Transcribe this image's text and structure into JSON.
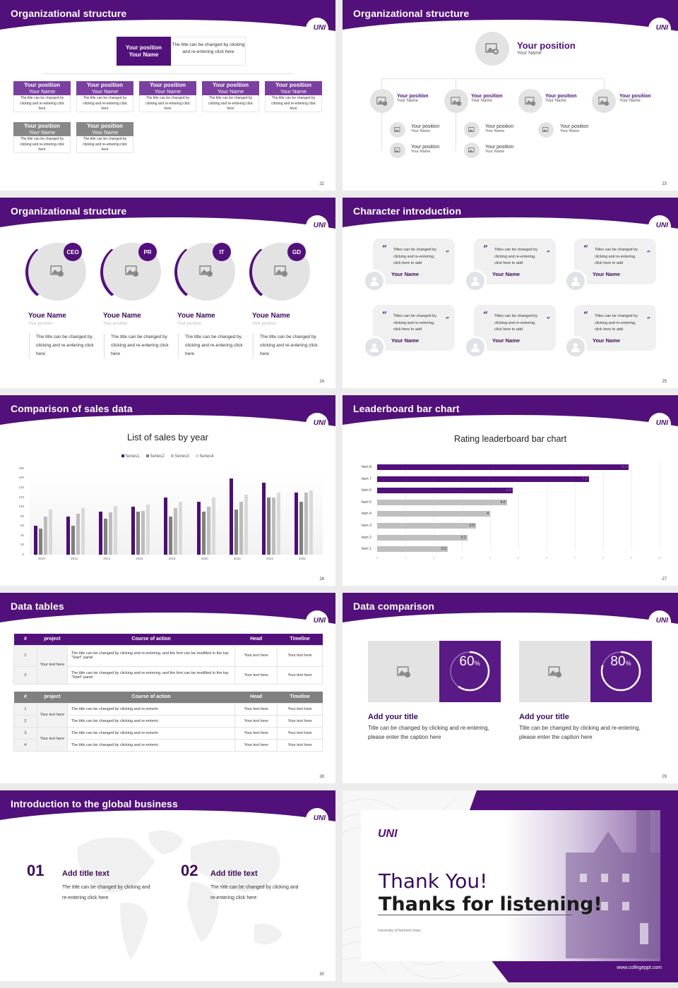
{
  "brand": {
    "logo": "UNI",
    "accent": "#52107a",
    "gray_header": "#808080"
  },
  "slides": {
    "s22": {
      "title": "Organizational structure",
      "page": "22",
      "top": {
        "position": "Your position",
        "name": "Your Name",
        "desc": "The title can be changed by clicking and re-entering click here"
      },
      "row1": [
        {
          "position": "Your position",
          "name": "Your Name",
          "desc": "The title can be changed by clicking and re-entering click here"
        },
        {
          "position": "Your position",
          "name": "Your Name",
          "desc": "The title can be changed by clicking and re-entering click here"
        },
        {
          "position": "Your position",
          "name": "Your Name",
          "desc": "The title can be changed by clicking and re-entering click here"
        },
        {
          "position": "Your position",
          "name": "Your Name",
          "desc": "The title can be changed by clicking and re-entering click here"
        },
        {
          "position": "Your position",
          "name": "Your Name",
          "desc": "The title can be changed by clicking and re-entering click here"
        }
      ],
      "row2": [
        {
          "position": "Your position",
          "name": "Your Name",
          "desc": "The title can be changed by clicking and re-entering click here"
        },
        {
          "position": "Your position",
          "name": "Your Name",
          "desc": "The title can be changed by clicking and re-entering click here"
        }
      ]
    },
    "s23": {
      "title": "Organizational structure",
      "page": "23",
      "top": {
        "position": "Your position",
        "name": "Your Name"
      },
      "level2": [
        {
          "position": "Your position",
          "name": "Your Name"
        },
        {
          "position": "Your position",
          "name": "Your Name"
        },
        {
          "position": "Your position",
          "name": "Your Name"
        },
        {
          "position": "Your position",
          "name": "Your Name"
        }
      ],
      "level3": [
        {
          "position": "Your position",
          "name": "Your Name"
        },
        {
          "position": "Your position",
          "name": "Your Name"
        },
        {
          "position": "Your position",
          "name": "Your Name"
        },
        {
          "position": "Your position",
          "name": "Your Name"
        },
        {
          "position": "Your position",
          "name": "Your Name"
        }
      ]
    },
    "s24": {
      "title": "Organizational structure",
      "page": "24",
      "members": [
        {
          "tag": "CEO",
          "name": "Youe Name",
          "position": "Your position",
          "desc": "The title can be changed by clicking and re-entering click here"
        },
        {
          "tag": "PR",
          "name": "Youe Name",
          "position": "Your position",
          "desc": "The title can be changed by clicking and re-entering click here"
        },
        {
          "tag": "IT",
          "name": "Youe Name",
          "position": "Your position",
          "desc": "The title can be changed by clicking and re-entering click here"
        },
        {
          "tag": "GD",
          "name": "Youe Name",
          "position": "Your position",
          "desc": "The title can be changed by clicking and re-entering click here"
        }
      ]
    },
    "s25": {
      "title": "Character introduction",
      "page": "25",
      "cards": [
        {
          "text": "Titles can be changed by clicking and re-entering, click here to add",
          "name": "Your Name"
        },
        {
          "text": "Titles can be changed by clicking and re-entering, click here to add",
          "name": "Your Name"
        },
        {
          "text": "Titles can be changed by clicking and re-entering, click here to add",
          "name": "Your Name"
        },
        {
          "text": "Titles can be changed by clicking and re-entering, click here to add",
          "name": "Your Name"
        },
        {
          "text": "Titles can be changed by clicking and re-entering, click here to add",
          "name": "Your Name"
        },
        {
          "text": "Titles can be changed by clicking and re-entering, click here to add",
          "name": "Your Name"
        }
      ],
      "quote_open": "“",
      "quote_close": "”"
    },
    "s26": {
      "title": "Comparison of sales data",
      "page": "26"
    },
    "s27": {
      "title": "Leaderboard bar chart",
      "page": "27"
    },
    "s28": {
      "title": "Data tables",
      "page": "28",
      "headers": [
        "#",
        "project",
        "Course of action",
        "Head",
        "Timeline"
      ],
      "table1": {
        "project": "Your text here",
        "rows": [
          {
            "num": "1",
            "action": "The title can be changed by clicking and re-entering, and the font can be modified in the top \"Start\" panel",
            "head": "Your text here",
            "timeline": "Your text here"
          },
          {
            "num": "2",
            "action": "The title can be changed by clicking and re-entering, and the font can be modified in the top \"Start\" panel",
            "head": "Your text here",
            "timeline": "Your text here"
          }
        ]
      },
      "table2": {
        "projects": [
          "Your text here",
          "Your text here"
        ],
        "rows": [
          {
            "num": "1",
            "action": "The title can be changed by clicking and re-enterin",
            "head": "Your text here",
            "timeline": "Your text here"
          },
          {
            "num": "2",
            "action": "The title can be changed by clicking and re-enterin",
            "head": "Your text here",
            "timeline": "Your text here"
          },
          {
            "num": "3",
            "action": "The title can be changed by clicking and re-enterin",
            "head": "Your text here",
            "timeline": "Your text here"
          },
          {
            "num": "4",
            "action": "The title can be changed by clicking and re-enterin",
            "head": "Your text here",
            "timeline": "Your text here"
          }
        ]
      }
    },
    "s29": {
      "title": "Data comparison",
      "page": "29",
      "items": [
        {
          "value": "60",
          "unit": "%",
          "pct": 60,
          "title": "Add your title",
          "desc": "Title can be changed by clicking and re-entering, please enter the caption here"
        },
        {
          "value": "80",
          "unit": "%",
          "pct": 80,
          "title": "Add your title",
          "desc": "Title can be changed by clicking and re-entering, please enter the caption here"
        }
      ]
    },
    "s30": {
      "title": "Introduction to the global business",
      "page": "30",
      "items": [
        {
          "num": "01",
          "title": "Add title text",
          "desc": "The title can be changed by clicking and re-entering click here"
        },
        {
          "num": "02",
          "title": "Add title text",
          "desc": "The title can be changed by clicking and re-entering click here"
        }
      ]
    },
    "s31": {
      "logo": "UNI",
      "line1": "Thank You!",
      "line2": "Thanks for listening!",
      "subtitle": "University of Northern Iowa",
      "url": "www.collegeppt.com"
    }
  },
  "chart_data": [
    {
      "type": "bar",
      "title": "List of sales by year",
      "categories": [
        "2010",
        "2012",
        "2014",
        "2016",
        "2018",
        "2020",
        "2022",
        "2024",
        "2026"
      ],
      "series": [
        {
          "name": "Series1",
          "color": "#4b0f73",
          "values": [
            60,
            80,
            90,
            100,
            120,
            110,
            160,
            150,
            130
          ]
        },
        {
          "name": "Series2",
          "color": "#808080",
          "values": [
            55,
            60,
            75,
            90,
            80,
            90,
            95,
            120,
            110
          ]
        },
        {
          "name": "Series3",
          "color": "#bdbdbd",
          "values": [
            80,
            85,
            88,
            92,
            98,
            100,
            110,
            120,
            130
          ]
        },
        {
          "name": "Series4",
          "color": "#d9d9d9",
          "values": [
            95,
            98,
            102,
            105,
            110,
            120,
            125,
            130,
            135
          ]
        }
      ],
      "yticks": [
        "180",
        "160",
        "140",
        "120",
        "100",
        "80",
        "60",
        "40",
        "20",
        "0"
      ],
      "ylim": [
        0,
        180
      ],
      "xlabel": "",
      "ylabel": "",
      "legend_position": "top",
      "grid": false
    },
    {
      "type": "bar",
      "orientation": "horizontal",
      "title": "Rating leaderboard bar chart",
      "categories": [
        "Item 8",
        "Item 7",
        "Item 6",
        "Item 5",
        "Item 4",
        "Item 3",
        "Item 2",
        "Item 1"
      ],
      "values": [
        8.9,
        7.5,
        4.8,
        4.6,
        4,
        3.5,
        3.2,
        2.5
      ],
      "labels": [
        "8.9",
        "7.5",
        "4.8",
        "4.6",
        "4",
        "3.5",
        "3.2",
        "2.5"
      ],
      "highlight_top": 3,
      "colors": {
        "highlight": "#52107a",
        "normal": "#bfbfbf"
      },
      "xticks": [
        "0",
        "1",
        "2",
        "3",
        "4",
        "5",
        "6",
        "7",
        "8",
        "9",
        "10"
      ],
      "xlim": [
        0,
        10
      ],
      "grid": true
    }
  ]
}
